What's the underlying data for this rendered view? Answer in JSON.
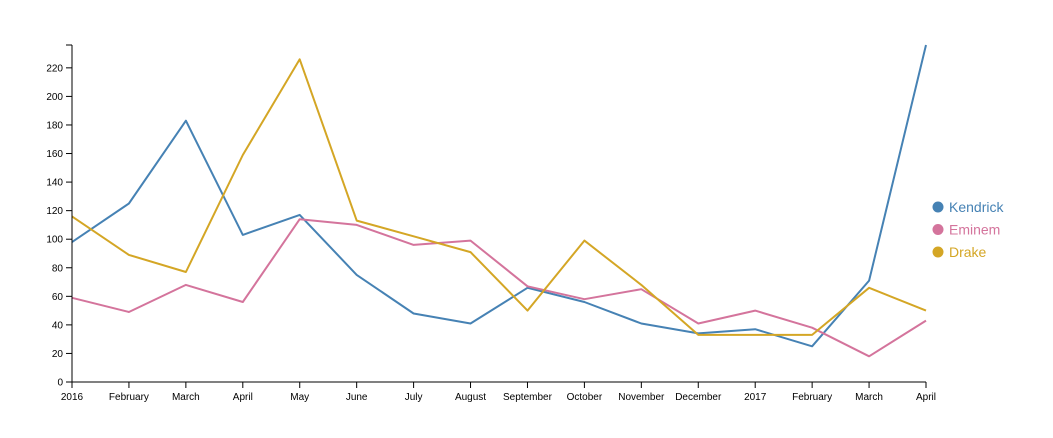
{
  "chart_data": {
    "type": "line",
    "title": "",
    "xlabel": "",
    "ylabel": "",
    "categories": [
      "2016",
      "February",
      "March",
      "April",
      "May",
      "June",
      "July",
      "August",
      "September",
      "October",
      "November",
      "December",
      "2017",
      "February",
      "March",
      "April"
    ],
    "ylim": [
      0,
      236
    ],
    "yticks": [
      0,
      20,
      40,
      60,
      80,
      100,
      120,
      140,
      160,
      180,
      200,
      220
    ],
    "grid": false,
    "legend_position": "right",
    "series": [
      {
        "name": "Kendrick",
        "color": "#4682b4",
        "values": [
          98,
          125,
          183,
          103,
          117,
          75,
          48,
          41,
          66,
          56,
          41,
          34,
          37,
          25,
          71,
          236
        ]
      },
      {
        "name": "Eminem",
        "color": "#d4749c",
        "values": [
          59,
          49,
          68,
          56,
          114,
          110,
          96,
          99,
          67,
          58,
          65,
          41,
          50,
          38,
          18,
          43
        ]
      },
      {
        "name": "Drake",
        "color": "#d4a625",
        "values": [
          116,
          89,
          77,
          159,
          226,
          113,
          102,
          91,
          50,
          99,
          68,
          33,
          33,
          33,
          66,
          50
        ]
      }
    ]
  }
}
